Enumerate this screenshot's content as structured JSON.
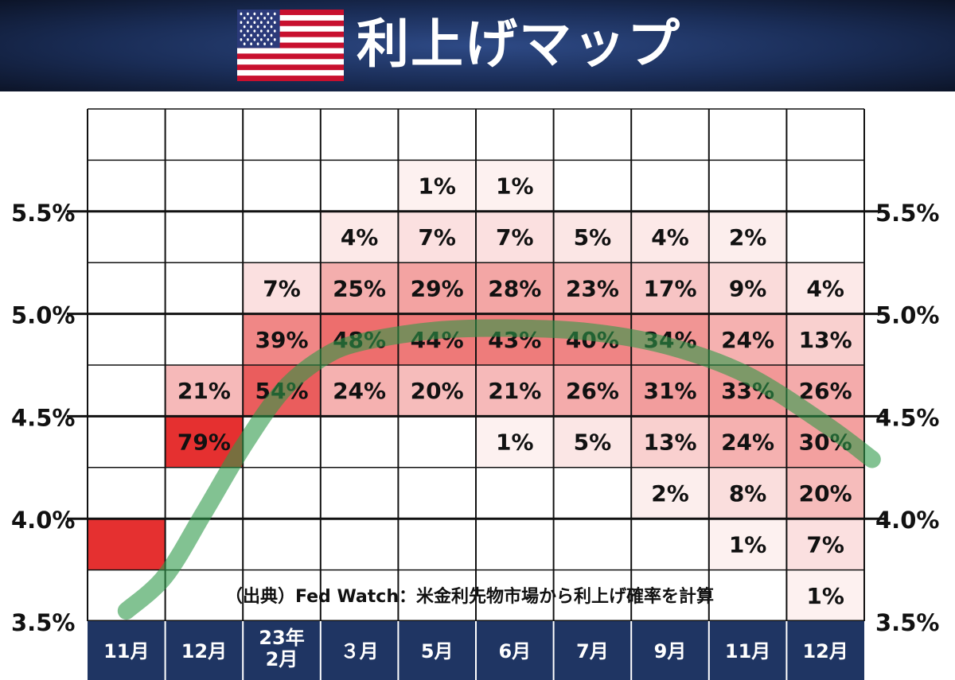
{
  "header": {
    "title": "利上げマップ",
    "flag_icon": "us-flag-icon",
    "colors": {
      "background": "#1a2d57",
      "title": "#ffffff"
    }
  },
  "source_note": "（出典）Fed Watch：米金利先物市場から利上げ確率を計算",
  "colors": {
    "high": "#e53030",
    "low": "#fdf4f3",
    "curve": "#2e9a4a",
    "axis_band": "#1f3563"
  },
  "chart_data": {
    "type": "heatmap",
    "title": "利上げマップ",
    "xlabel": "",
    "ylabel": "",
    "x_categories": [
      "11月",
      "12月",
      "23年\n2月",
      "３月",
      "5月",
      "6月",
      "7月",
      "9月",
      "11月",
      "12月"
    ],
    "y_ticks": [
      "3.5%",
      "4.0%",
      "4.5%",
      "5.0%",
      "5.5%"
    ],
    "y_tick_values": [
      3.5,
      4.0,
      4.5,
      5.0,
      5.5
    ],
    "ylim": [
      3.5,
      6.0
    ],
    "row_ranges": [
      [
        5.75,
        6.0
      ],
      [
        5.5,
        5.75
      ],
      [
        5.25,
        5.5
      ],
      [
        5.0,
        5.25
      ],
      [
        4.75,
        5.0
      ],
      [
        4.5,
        4.75
      ],
      [
        4.25,
        4.5
      ],
      [
        4.0,
        4.25
      ],
      [
        3.75,
        4.0
      ],
      [
        3.5,
        3.75
      ]
    ],
    "values": [
      [
        null,
        null,
        null,
        null,
        null,
        null,
        null,
        null,
        null,
        null
      ],
      [
        null,
        null,
        null,
        null,
        1,
        1,
        null,
        null,
        null,
        null
      ],
      [
        null,
        null,
        null,
        4,
        7,
        7,
        5,
        4,
        2,
        null
      ],
      [
        null,
        null,
        7,
        25,
        29,
        28,
        23,
        17,
        9,
        4
      ],
      [
        null,
        null,
        39,
        48,
        44,
        43,
        40,
        34,
        24,
        13
      ],
      [
        null,
        21,
        54,
        24,
        20,
        21,
        26,
        31,
        33,
        26
      ],
      [
        null,
        79,
        null,
        null,
        null,
        1,
        5,
        13,
        24,
        30
      ],
      [
        null,
        null,
        null,
        null,
        null,
        null,
        null,
        2,
        8,
        20
      ],
      [
        100,
        null,
        null,
        null,
        null,
        null,
        null,
        null,
        1,
        7
      ],
      [
        null,
        null,
        null,
        null,
        null,
        null,
        null,
        null,
        null,
        1
      ]
    ],
    "labels": [
      [
        "",
        "",
        "",
        "",
        "",
        "",
        "",
        "",
        "",
        ""
      ],
      [
        "",
        "",
        "",
        "",
        "1%",
        "1%",
        "",
        "",
        "",
        ""
      ],
      [
        "",
        "",
        "",
        "4%",
        "7%",
        "7%",
        "5%",
        "4%",
        "2%",
        ""
      ],
      [
        "",
        "",
        "7%",
        "25%",
        "29%",
        "28%",
        "23%",
        "17%",
        "9%",
        "4%"
      ],
      [
        "",
        "",
        "39%",
        "48%",
        "44%",
        "43%",
        "40%",
        "34%",
        "24%",
        "13%"
      ],
      [
        "",
        "21%",
        "54%",
        "24%",
        "20%",
        "21%",
        "26%",
        "31%",
        "33%",
        "26%"
      ],
      [
        "",
        "79%",
        "",
        "",
        "",
        "1%",
        "5%",
        "13%",
        "24%",
        "30%"
      ],
      [
        "",
        "",
        "",
        "",
        "",
        "",
        "",
        "2%",
        "8%",
        "20%"
      ],
      [
        "",
        "",
        "",
        "",
        "",
        "",
        "",
        "",
        "1%",
        "7%"
      ],
      [
        "",
        "",
        "",
        "",
        "",
        "",
        "",
        "",
        "",
        "1%"
      ]
    ],
    "trend_curve": {
      "x_index": [
        0.0,
        0.5,
        1.0,
        1.5,
        2.0,
        2.5,
        3.0,
        4.0,
        5.0,
        6.0,
        7.0,
        8.0,
        9.0,
        9.6
      ],
      "y": [
        3.55,
        3.72,
        4.03,
        4.35,
        4.62,
        4.78,
        4.86,
        4.92,
        4.93,
        4.91,
        4.84,
        4.7,
        4.46,
        4.29
      ]
    },
    "grid": true,
    "legend": "none"
  }
}
